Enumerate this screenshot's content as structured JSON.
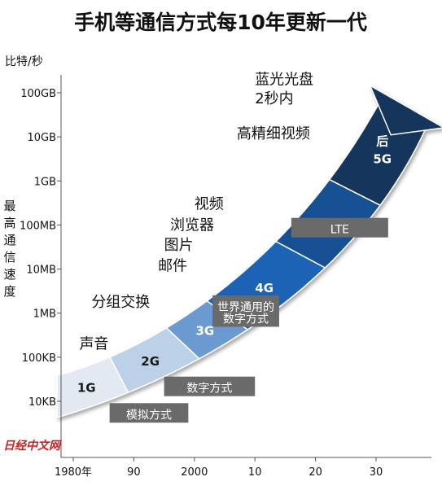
{
  "chart_data": {
    "type": "area",
    "title": "手机等通信方式每10年更新一代",
    "ylabel": "最高通信速度",
    "y_unit": "比特/秒",
    "y_scale": "log",
    "y_ticks": [
      {
        "label": "10KB",
        "value": 10000
      },
      {
        "label": "100KB",
        "value": 100000
      },
      {
        "label": "1MB",
        "value": 1000000
      },
      {
        "label": "10MB",
        "value": 10000000
      },
      {
        "label": "100MB",
        "value": 100000000
      },
      {
        "label": "1GB",
        "value": 1000000000
      },
      {
        "label": "10GB",
        "value": 10000000000
      },
      {
        "label": "100GB",
        "value": 100000000000
      }
    ],
    "x_ticks": [
      {
        "label": "1980年",
        "value": 1980
      },
      {
        "label": "90",
        "value": 1990
      },
      {
        "label": "2000",
        "value": 2000
      },
      {
        "label": "10",
        "value": 2010
      },
      {
        "label": "20",
        "value": 2020
      },
      {
        "label": "30",
        "value": 2030
      }
    ],
    "generations": [
      {
        "label": "1G",
        "start": 1980,
        "end": 1990,
        "color": "#e3e9f3"
      },
      {
        "label": "2G",
        "start": 1990,
        "end": 1999,
        "color": "#bcd0e7"
      },
      {
        "label": "3G",
        "start": 1999,
        "end": 2005,
        "color": "#6b9ad0"
      },
      {
        "label": "4G",
        "start": 2005,
        "end": 2015,
        "color": "#1d64b5"
      },
      {
        "label": "5G",
        "start": 2015,
        "end": 2023,
        "color": "#174f92"
      },
      {
        "label": "后5G",
        "start": 2023,
        "end": 2032,
        "color": "#15345d"
      }
    ],
    "applications": [
      {
        "text": "声音",
        "year": 1981,
        "value": 200000
      },
      {
        "text": "分组交换",
        "year": 1983,
        "value": 1800000
      },
      {
        "text": "邮件",
        "year": 1994,
        "value": 12000000
      },
      {
        "text": "图片",
        "year": 1995,
        "value": 35000000
      },
      {
        "text": "浏览器",
        "year": 1996,
        "value": 100000000
      },
      {
        "text": "视频",
        "year": 2000,
        "value": 300000000
      },
      {
        "text": "高精细视频",
        "year": 2007,
        "value": 12000000000
      },
      {
        "text": "蓝光光盘",
        "year": 2010,
        "value": 200000000000
      },
      {
        "text": "2秒内",
        "year": 2010,
        "value": 75000000000
      }
    ],
    "technologies": [
      {
        "text": "模拟方式",
        "start": 1986,
        "end": 1999,
        "value": 5000
      },
      {
        "text": "数字方式",
        "start": 1995,
        "end": 2010,
        "value": 20000
      },
      {
        "text": "世界通用的",
        "start": 2003,
        "end": 2014,
        "value": 1400000
      },
      {
        "text": "数字方式",
        "start": 2003,
        "end": 2014,
        "value": 750000
      },
      {
        "text": "LTE",
        "start": 2016,
        "end": 2032,
        "value": 80000000
      }
    ]
  },
  "watermark": "日经中文网",
  "colors": {
    "axis": "#555555",
    "tag": "#6a6a6a"
  }
}
